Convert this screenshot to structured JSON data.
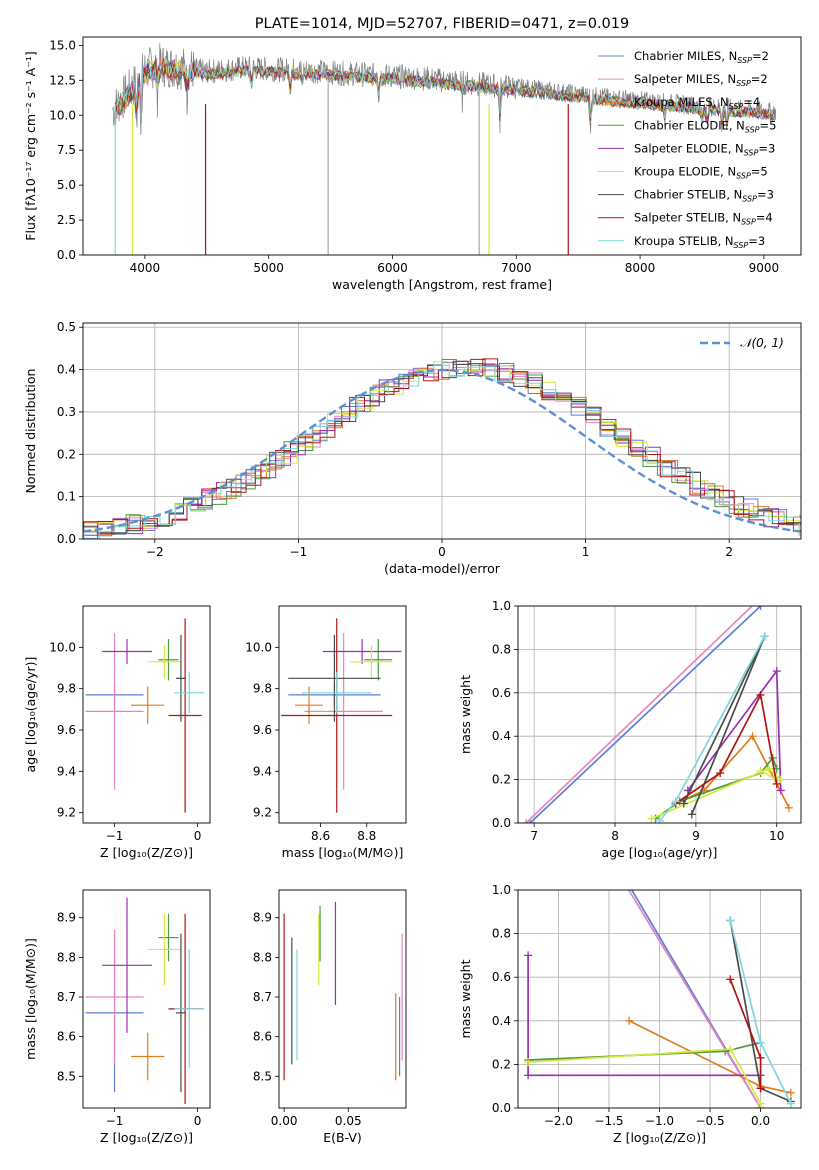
{
  "colors": {
    "chabrier_miles": "#5b7fd6",
    "salpeter_miles": "#e884c0",
    "kroupa_miles": "#e07b1f",
    "chabrier_elodie": "#4e9a3e",
    "salpeter_elodie": "#9a2fb5",
    "kroupa_elodie": "#d6e83a",
    "chabrier_stelib": "#4a4a4a",
    "salpeter_stelib": "#b01515",
    "kroupa_stelib": "#7fd6dc",
    "spectrum": "#7f7f7f",
    "gaussian": "#5b8fd6",
    "grid": "#b0b0b0"
  },
  "legend_models": [
    {
      "key": "chabrier_miles",
      "label": "Chabrier MILES, N",
      "sub": "SSP",
      "suffix": "=2"
    },
    {
      "key": "salpeter_miles",
      "label": "Salpeter MILES, N",
      "sub": "SSP",
      "suffix": "=2"
    },
    {
      "key": "kroupa_miles",
      "label": "Kroupa MILES, N",
      "sub": "SSP",
      "suffix": "=4"
    },
    {
      "key": "chabrier_elodie",
      "label": "Chabrier ELODIE, N",
      "sub": "SSP",
      "suffix": "=5"
    },
    {
      "key": "salpeter_elodie",
      "label": "Salpeter ELODIE, N",
      "sub": "SSP",
      "suffix": "=3"
    },
    {
      "key": "kroupa_elodie",
      "label": "Kroupa ELODIE, N",
      "sub": "SSP",
      "suffix": "=5"
    },
    {
      "key": "chabrier_stelib",
      "label": "Chabrier STELIB, N",
      "sub": "SSP",
      "suffix": "=3"
    },
    {
      "key": "salpeter_stelib",
      "label": "Salpeter STELIB, N",
      "sub": "SSP",
      "suffix": "=4"
    },
    {
      "key": "kroupa_stelib",
      "label": "Kroupa STELIB, N",
      "sub": "SSP",
      "suffix": "=3"
    }
  ],
  "chart_data": [
    {
      "id": "spectrum",
      "type": "line",
      "title": "PLATE=1014, MJD=52707, FIBERID=0471, z=0.019",
      "xlabel": "wavelength [Angstrom, rest frame]",
      "ylabel": "Flux [fλ10⁻¹⁷ erg cm⁻² s⁻¹ A⁻¹]",
      "xlim": [
        3500,
        9300
      ],
      "ylim": [
        0,
        15.6
      ],
      "xticks": [
        4000,
        5000,
        6000,
        7000,
        8000,
        9000
      ],
      "yticks": [
        0.0,
        2.5,
        5.0,
        7.5,
        10.0,
        12.5,
        15.0
      ],
      "ytick_labels": [
        "0.0",
        "2.5",
        "5.0",
        "7.5",
        "10.0",
        "12.5",
        "15.0"
      ],
      "continuum": [
        [
          3740,
          10.4
        ],
        [
          3900,
          12.0
        ],
        [
          4000,
          13.2
        ],
        [
          4100,
          13.6
        ],
        [
          4300,
          13.4
        ],
        [
          4500,
          13.1
        ],
        [
          4800,
          13.4
        ],
        [
          5000,
          13.3
        ],
        [
          5300,
          13.2
        ],
        [
          5600,
          13.0
        ],
        [
          6000,
          12.8
        ],
        [
          6300,
          12.6
        ],
        [
          6600,
          12.3
        ],
        [
          7000,
          12.0
        ],
        [
          7400,
          11.6
        ],
        [
          7800,
          11.2
        ],
        [
          8200,
          10.9
        ],
        [
          8600,
          10.6
        ],
        [
          9000,
          10.3
        ],
        [
          9100,
          10.2
        ]
      ],
      "legend_position": "upper right"
    },
    {
      "id": "residuals",
      "type": "line",
      "xlabel": "(data-model)/error",
      "ylabel": "Normed distribution",
      "xlim": [
        -2.5,
        2.5
      ],
      "ylim": [
        0,
        0.51
      ],
      "xticks": [
        -2,
        -1,
        0,
        1,
        2
      ],
      "xtick_labels": [
        "−2",
        "−1",
        "0",
        "1",
        "2"
      ],
      "yticks": [
        0.0,
        0.1,
        0.2,
        0.3,
        0.4,
        0.5
      ],
      "ytick_labels": [
        "0.0",
        "0.1",
        "0.2",
        "0.3",
        "0.4",
        "0.5"
      ],
      "grid": true,
      "gaussian_label": "𝒩(0, 1)",
      "legend_position": "upper right"
    },
    {
      "id": "age_vs_Z",
      "type": "scatter",
      "xlabel": "Z [log₁₀(Z/Z⊙)]",
      "ylabel": "age [log₁₀(age/yr)]",
      "xlim": [
        -1.38,
        0.15
      ],
      "ylim": [
        9.15,
        10.2
      ],
      "xticks": [
        -1,
        0
      ],
      "xtick_labels": [
        "−1",
        "0"
      ],
      "yticks": [
        9.2,
        9.4,
        9.6,
        9.8,
        10.0
      ],
      "ytick_labels": [
        "9.2",
        "9.4",
        "9.6",
        "9.8",
        "10.0"
      ],
      "points": [
        {
          "model": "chabrier_miles",
          "x": -1.0,
          "xerr": 0.35,
          "y": 9.77,
          "yerr": 0.05
        },
        {
          "model": "salpeter_miles",
          "x": -1.0,
          "xerr": 0.35,
          "y": 9.69,
          "yerr": 0.38
        },
        {
          "model": "kroupa_miles",
          "x": -0.6,
          "xerr": 0.2,
          "y": 9.72,
          "yerr": 0.09
        },
        {
          "model": "chabrier_elodie",
          "x": -0.35,
          "xerr": 0.12,
          "y": 9.94,
          "yerr": 0.1
        },
        {
          "model": "salpeter_elodie",
          "x": -0.85,
          "xerr": 0.3,
          "y": 9.98,
          "yerr": 0.06
        },
        {
          "model": "kroupa_elodie",
          "x": -0.4,
          "xerr": 0.2,
          "y": 9.93,
          "yerr": 0.08
        },
        {
          "model": "chabrier_stelib",
          "x": -0.2,
          "xerr": 0.06,
          "y": 9.85,
          "yerr": 0.21
        },
        {
          "model": "salpeter_stelib",
          "x": -0.15,
          "xerr": 0.2,
          "y": 9.67,
          "yerr": 0.47
        },
        {
          "model": "kroupa_stelib",
          "x": -0.1,
          "xerr": 0.18,
          "y": 9.78,
          "yerr": 0.1
        }
      ]
    },
    {
      "id": "age_vs_mass",
      "type": "scatter",
      "xlabel": "mass [log₁₀(M/M⊙)]",
      "ylabel": "",
      "xlim": [
        8.42,
        8.97
      ],
      "ylim": [
        9.15,
        10.2
      ],
      "xticks": [
        8.6,
        8.8
      ],
      "xtick_labels": [
        "8.6",
        "8.8"
      ],
      "yticks": [
        9.2,
        9.4,
        9.6,
        9.8,
        10.0
      ],
      "ytick_labels": [
        "9.2",
        "9.4",
        "9.6",
        "9.8",
        "10.0"
      ],
      "points": [
        {
          "model": "chabrier_miles",
          "x": 8.66,
          "xerr": 0.2,
          "y": 9.77,
          "yerr": 0.05
        },
        {
          "model": "salpeter_miles",
          "x": 8.7,
          "xerr": 0.17,
          "y": 9.69,
          "yerr": 0.38
        },
        {
          "model": "kroupa_miles",
          "x": 8.55,
          "xerr": 0.06,
          "y": 9.72,
          "yerr": 0.09
        },
        {
          "model": "chabrier_elodie",
          "x": 8.85,
          "xerr": 0.06,
          "y": 9.94,
          "yerr": 0.1
        },
        {
          "model": "salpeter_elodie",
          "x": 8.78,
          "xerr": 0.17,
          "y": 9.98,
          "yerr": 0.06
        },
        {
          "model": "kroupa_elodie",
          "x": 8.82,
          "xerr": 0.09,
          "y": 9.93,
          "yerr": 0.08
        },
        {
          "model": "chabrier_stelib",
          "x": 8.66,
          "xerr": 0.2,
          "y": 9.85,
          "yerr": 0.21
        },
        {
          "model": "salpeter_stelib",
          "x": 8.67,
          "xerr": 0.24,
          "y": 9.67,
          "yerr": 0.47
        },
        {
          "model": "kroupa_stelib",
          "x": 8.67,
          "xerr": 0.15,
          "y": 9.78,
          "yerr": 0.1
        }
      ]
    },
    {
      "id": "massweight_vs_age",
      "type": "line",
      "xlabel": "age [log₁₀(age/yr)]",
      "ylabel": "mass weight",
      "xlim": [
        6.8,
        10.3
      ],
      "ylim": [
        0,
        1.0
      ],
      "xticks": [
        7,
        8,
        9,
        10
      ],
      "xtick_labels": [
        "7",
        "8",
        "9",
        "10"
      ],
      "yticks": [
        0.0,
        0.2,
        0.4,
        0.6,
        0.8,
        1.0
      ],
      "ytick_labels": [
        "0.0",
        "0.2",
        "0.4",
        "0.6",
        "0.8",
        "1.0"
      ],
      "grid": true,
      "series": [
        {
          "model": "chabrier_miles",
          "x": [
            6.95,
            9.8
          ],
          "y": [
            0.0,
            1.0
          ]
        },
        {
          "model": "salpeter_miles",
          "x": [
            6.9,
            9.75
          ],
          "y": [
            0.0,
            1.02
          ]
        },
        {
          "model": "kroupa_miles",
          "x": [
            8.75,
            9.1,
            9.7,
            10.15
          ],
          "y": [
            0.09,
            0.15,
            0.4,
            0.07
          ]
        },
        {
          "model": "chabrier_elodie",
          "x": [
            8.5,
            8.8,
            9.8,
            9.95,
            10.0
          ],
          "y": [
            0.02,
            0.1,
            0.23,
            0.3,
            0.25
          ]
        },
        {
          "model": "salpeter_elodie",
          "x": [
            8.9,
            10.0,
            10.05
          ],
          "y": [
            0.15,
            0.7,
            0.15
          ]
        },
        {
          "model": "kroupa_elodie",
          "x": [
            8.45,
            9.9,
            10.05,
            10.0,
            9.8
          ],
          "y": [
            0.02,
            0.25,
            0.2,
            0.2,
            0.24
          ]
        },
        {
          "model": "chabrier_stelib",
          "x": [
            8.95,
            9.85,
            8.85
          ],
          "y": [
            0.04,
            0.86,
            0.09
          ]
        },
        {
          "model": "salpeter_stelib",
          "x": [
            8.75,
            9.3,
            9.8,
            10.0
          ],
          "y": [
            0.09,
            0.23,
            0.59,
            0.18
          ]
        },
        {
          "model": "kroupa_stelib",
          "x": [
            8.55,
            8.75,
            9.85
          ],
          "y": [
            0.01,
            0.1,
            0.86
          ]
        }
      ]
    },
    {
      "id": "mass_vs_Z",
      "type": "scatter",
      "xlabel": "Z [log₁₀(Z/Z⊙)]",
      "ylabel": "mass [log₁₀(M/M⊙)]",
      "xlim": [
        -1.38,
        0.15
      ],
      "ylim": [
        8.42,
        8.97
      ],
      "xticks": [
        -1,
        0
      ],
      "xtick_labels": [
        "−1",
        "0"
      ],
      "yticks": [
        8.5,
        8.6,
        8.7,
        8.8,
        8.9
      ],
      "ytick_labels": [
        "8.5",
        "8.6",
        "8.7",
        "8.8",
        "8.9"
      ],
      "points": [
        {
          "model": "chabrier_miles",
          "x": -1.0,
          "xerr": 0.35,
          "y": 8.66,
          "yerr": 0.2
        },
        {
          "model": "salpeter_miles",
          "x": -1.0,
          "xerr": 0.35,
          "y": 8.7,
          "yerr": 0.17
        },
        {
          "model": "kroupa_miles",
          "x": -0.6,
          "xerr": 0.2,
          "y": 8.55,
          "yerr": 0.06
        },
        {
          "model": "chabrier_elodie",
          "x": -0.35,
          "xerr": 0.12,
          "y": 8.85,
          "yerr": 0.06
        },
        {
          "model": "salpeter_elodie",
          "x": -0.85,
          "xerr": 0.3,
          "y": 8.78,
          "yerr": 0.17
        },
        {
          "model": "kroupa_elodie",
          "x": -0.4,
          "xerr": 0.2,
          "y": 8.82,
          "yerr": 0.09
        },
        {
          "model": "chabrier_stelib",
          "x": -0.2,
          "xerr": 0.06,
          "y": 8.66,
          "yerr": 0.2
        },
        {
          "model": "salpeter_stelib",
          "x": -0.15,
          "xerr": 0.2,
          "y": 8.67,
          "yerr": 0.24
        },
        {
          "model": "kroupa_stelib",
          "x": -0.1,
          "xerr": 0.18,
          "y": 8.67,
          "yerr": 0.15
        }
      ]
    },
    {
      "id": "mass_vs_ebv",
      "type": "scatter",
      "xlabel": "E(B-V)",
      "ylabel": "",
      "xlim": [
        -0.004,
        0.095
      ],
      "ylim": [
        8.42,
        8.97
      ],
      "xticks": [
        0.0,
        0.05
      ],
      "xtick_labels": [
        "0.00",
        "0.05"
      ],
      "yticks": [
        8.5,
        8.6,
        8.7,
        8.8,
        8.9
      ],
      "ytick_labels": [
        "8.5",
        "8.6",
        "8.7",
        "8.8",
        "8.9"
      ],
      "points": [
        {
          "model": "chabrier_miles",
          "x": 0.09,
          "y": 8.6,
          "yerr": 0.1
        },
        {
          "model": "salpeter_miles",
          "x": 0.092,
          "y": 8.7,
          "yerr": 0.16
        },
        {
          "model": "kroupa_miles",
          "x": 0.087,
          "y": 8.6,
          "yerr": 0.11
        },
        {
          "model": "chabrier_elodie",
          "x": 0.028,
          "y": 8.86,
          "yerr": 0.07
        },
        {
          "model": "salpeter_elodie",
          "x": 0.04,
          "y": 8.81,
          "yerr": 0.13
        },
        {
          "model": "kroupa_elodie",
          "x": 0.027,
          "y": 8.82,
          "yerr": 0.09
        },
        {
          "model": "chabrier_stelib",
          "x": 0.006,
          "y": 8.69,
          "yerr": 0.16
        },
        {
          "model": "salpeter_stelib",
          "x": 0.0,
          "y": 8.7,
          "yerr": 0.21
        },
        {
          "model": "kroupa_stelib",
          "x": 0.01,
          "y": 8.68,
          "yerr": 0.14
        }
      ]
    },
    {
      "id": "massweight_vs_Z",
      "type": "line",
      "xlabel": "Z [log₁₀(Z/Z⊙)]",
      "ylabel": "mass weight",
      "xlim": [
        -2.4,
        0.4
      ],
      "ylim": [
        0,
        1.0
      ],
      "xticks": [
        -2.0,
        -1.5,
        -1.0,
        -0.5,
        0.0
      ],
      "xtick_labels": [
        "−2.0",
        "−1.5",
        "−1.0",
        "−0.5",
        "0.0"
      ],
      "yticks": [
        0.0,
        0.2,
        0.4,
        0.6,
        0.8,
        1.0
      ],
      "ytick_labels": [
        "0.0",
        "0.2",
        "0.4",
        "0.6",
        "0.8",
        "1.0"
      ],
      "grid": true,
      "series": [
        {
          "model": "chabrier_miles",
          "x": [
            -1.3,
            0.0
          ],
          "y": [
            1.02,
            0.0
          ]
        },
        {
          "model": "salpeter_miles",
          "x": [
            -1.33,
            0.0
          ],
          "y": [
            1.02,
            0.0
          ]
        },
        {
          "model": "kroupa_miles",
          "x": [
            -1.3,
            0.0,
            0.3
          ],
          "y": [
            0.4,
            0.1,
            0.07
          ]
        },
        {
          "model": "chabrier_elodie",
          "x": [
            -2.3,
            -0.35,
            0.0
          ],
          "y": [
            0.22,
            0.26,
            0.3
          ]
        },
        {
          "model": "salpeter_elodie",
          "x": [
            -2.3,
            -2.3,
            0.0
          ],
          "y": [
            0.7,
            0.15,
            0.15
          ]
        },
        {
          "model": "kroupa_elodie",
          "x": [
            -2.3,
            -0.3,
            0.0
          ],
          "y": [
            0.21,
            0.27,
            0.02
          ]
        },
        {
          "model": "chabrier_stelib",
          "x": [
            -0.3,
            0.0,
            0.3
          ],
          "y": [
            0.86,
            0.09,
            0.03
          ]
        },
        {
          "model": "salpeter_stelib",
          "x": [
            -0.3,
            0.0,
            0.0
          ],
          "y": [
            0.59,
            0.23,
            0.09
          ]
        },
        {
          "model": "kroupa_stelib",
          "x": [
            -0.3,
            0.0,
            0.3
          ],
          "y": [
            0.86,
            0.3,
            0.02
          ]
        }
      ]
    }
  ]
}
